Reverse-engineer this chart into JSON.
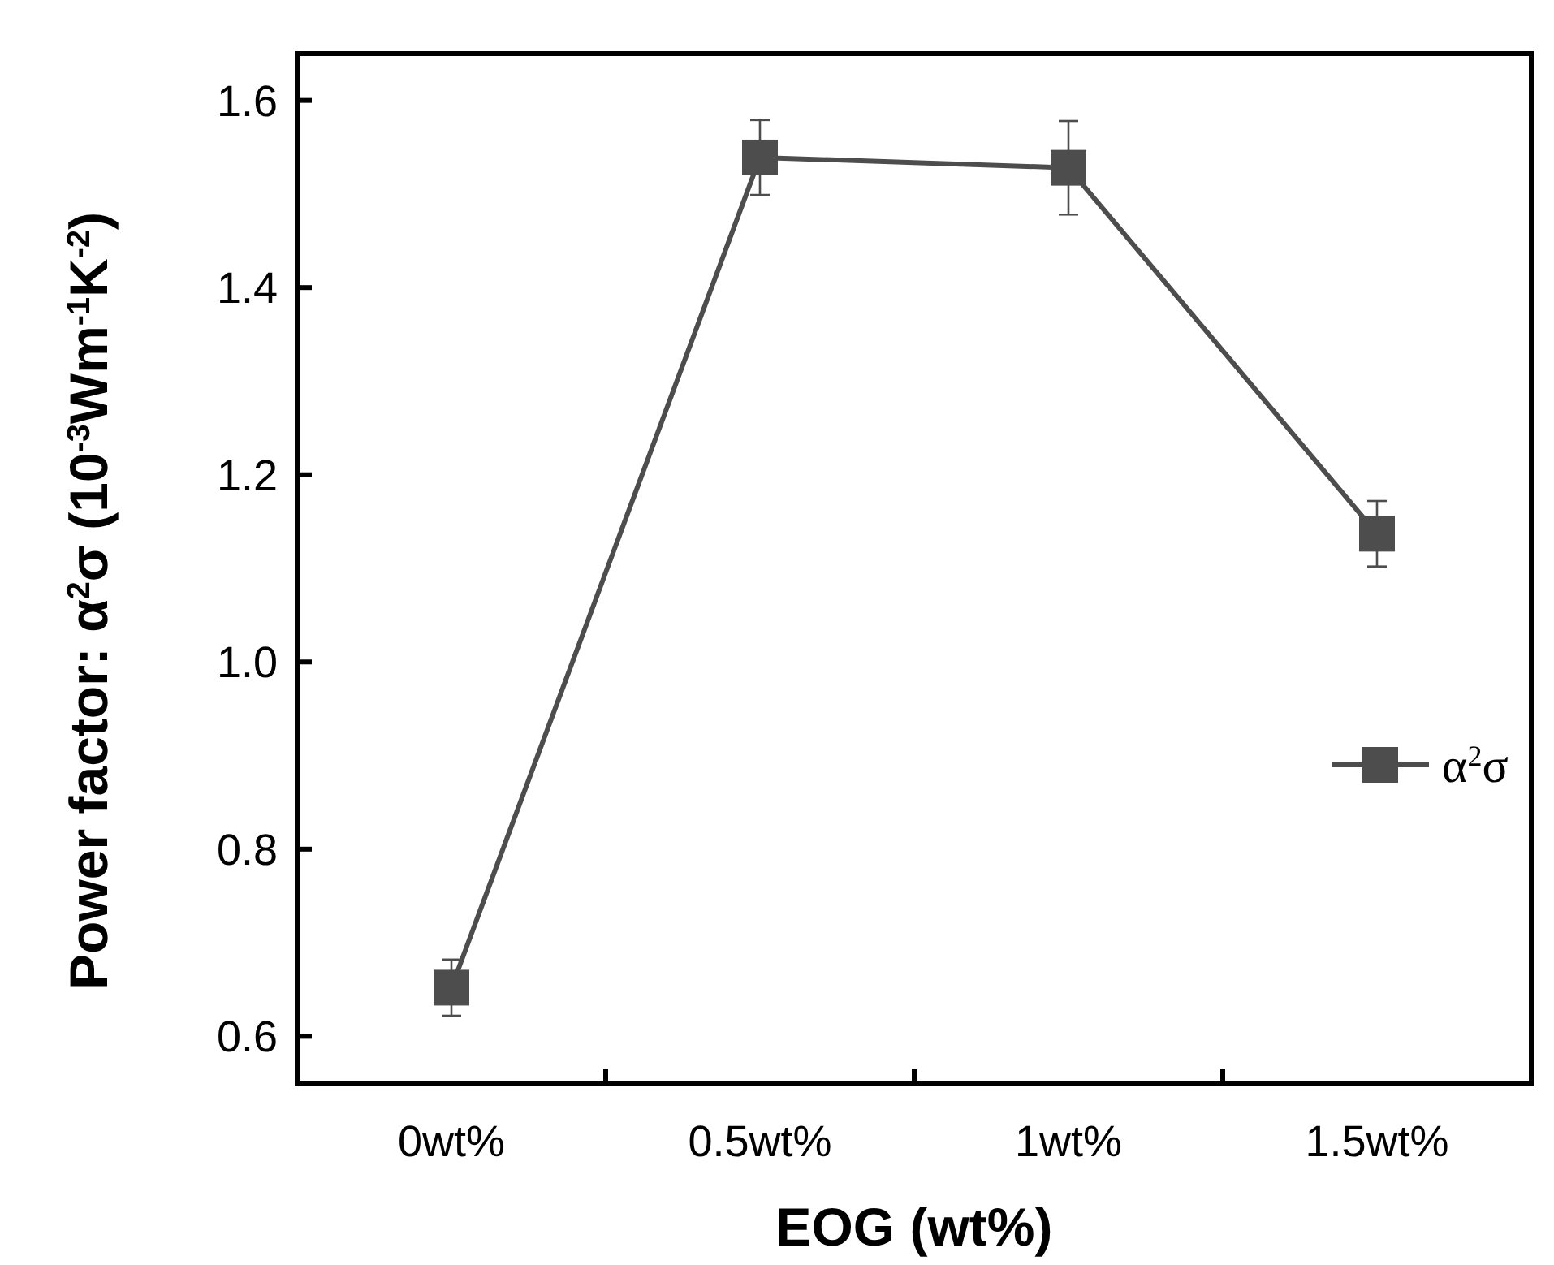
{
  "chart_data": {
    "type": "line",
    "xlabel": "EOG (wt%)",
    "ylabel": "Power factor: α$^{2}$σ (10$^{-3}$Wm$^{-1}$K$^{-2}$)",
    "categories": [
      "0wt%",
      "0.5wt%",
      "1wt%",
      "1.5wt%"
    ],
    "series": [
      {
        "name": "α$^{2}$σ",
        "color": "#4d4d4d",
        "values": [
          0.652,
          1.539,
          1.528,
          1.137
        ],
        "errors": [
          0.03,
          0.04,
          0.05,
          0.035
        ]
      }
    ],
    "ylim": [
      0.55,
      1.65
    ],
    "yticks": [
      {
        "value": 0.6,
        "label": "0.6"
      },
      {
        "value": 0.8,
        "label": "0.8"
      },
      {
        "value": 1.0,
        "label": "1.0"
      },
      {
        "value": 1.2,
        "label": "1.2"
      },
      {
        "value": 1.4,
        "label": "1.4"
      },
      {
        "value": 1.6,
        "label": "1.6"
      }
    ],
    "marker": "square",
    "line_style": "solid",
    "legend": "right",
    "grid": false
  }
}
